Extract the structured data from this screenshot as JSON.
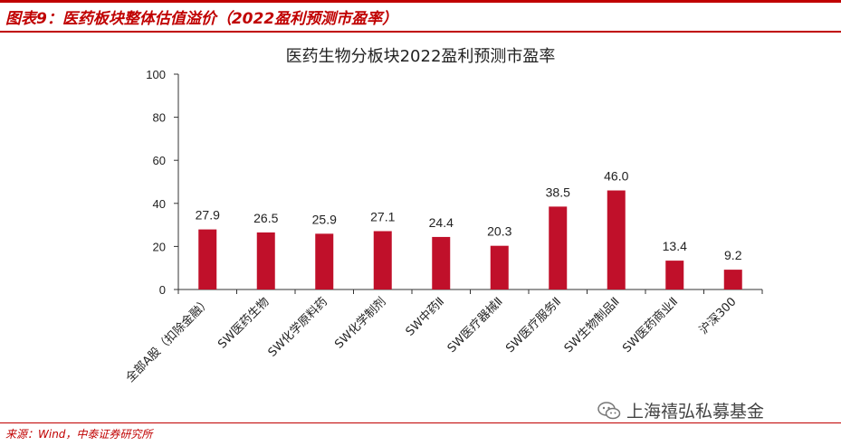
{
  "header": {
    "title": "图表9：医药板块整体估值溢价（2022盈利预测市盈率）"
  },
  "footer": {
    "source": "来源：Wind，中泰证券研究所"
  },
  "watermark": {
    "text": "上海禧弘私募基金",
    "icon": "wechat-icon"
  },
  "colors": {
    "accent": "#c00000",
    "bar": "#c0102a"
  },
  "chart_data": {
    "type": "bar",
    "title": "医药生物分板块2022盈利预测市盈率",
    "categories": [
      "全部A股（扣除金融）",
      "SW医药生物",
      "SW化学原料药",
      "SW化学制剂",
      "SW中药Ⅱ",
      "SW医疗器械Ⅱ",
      "SW医疗服务Ⅱ",
      "SW生物制品Ⅱ",
      "SW医药商业Ⅱ",
      "沪深300"
    ],
    "values": [
      27.9,
      26.5,
      25.9,
      27.1,
      24.4,
      20.3,
      38.5,
      46.0,
      13.4,
      9.2
    ],
    "value_labels": [
      "27.9",
      "26.5",
      "25.9",
      "27.1",
      "24.4",
      "20.3",
      "38.5",
      "46.0",
      "13.4",
      "9.2"
    ],
    "yticks": [
      "0",
      "20",
      "40",
      "60",
      "80",
      "100"
    ],
    "ylim": [
      0,
      100
    ],
    "xlabel": "",
    "ylabel": "",
    "grid": false,
    "legend": "none"
  }
}
